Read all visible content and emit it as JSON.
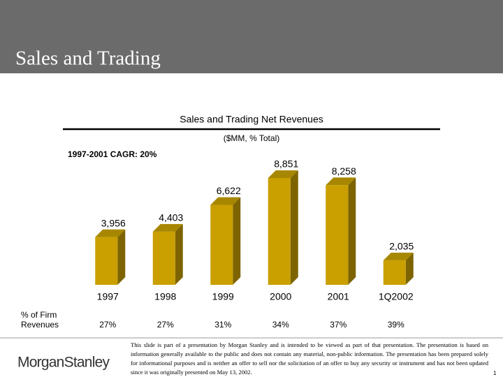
{
  "slide": {
    "title": "Sales and Trading"
  },
  "chart_data": {
    "type": "bar",
    "title": "Sales and Trading Net Revenues",
    "subtitle": "($MM, % Total)",
    "annotation": "1997-2001 CAGR: 20%",
    "categories": [
      "1997",
      "1998",
      "1999",
      "2000",
      "2001",
      "1Q2002"
    ],
    "values": [
      3956,
      4403,
      6622,
      8851,
      8258,
      2035
    ],
    "value_labels": [
      "3,956",
      "4,403",
      "6,622",
      "8,851",
      "8,258",
      "2,035"
    ],
    "color": "#c9a000",
    "share_row": {
      "label": [
        "% of Firm",
        "Revenues"
      ],
      "values": [
        27,
        27,
        31,
        34,
        37,
        39
      ],
      "value_labels": [
        "27%",
        "27%",
        "31%",
        "34%",
        "37%",
        "39%"
      ]
    }
  },
  "footer": {
    "logo": "MorganStanley",
    "disclaimer": "This slide is part of a presentation by Morgan Stanley and is intended to be viewed as part of that presentation. The presentation is based on information generally available to the public and does not contain any material, non-public information. The presentation has been prepared solely for informational purposes and is neither an offer to sell nor the solicitation of an offer to buy any security or instrument and has not been updated since it was originally presented on May 13, 2002.",
    "page": "1"
  }
}
